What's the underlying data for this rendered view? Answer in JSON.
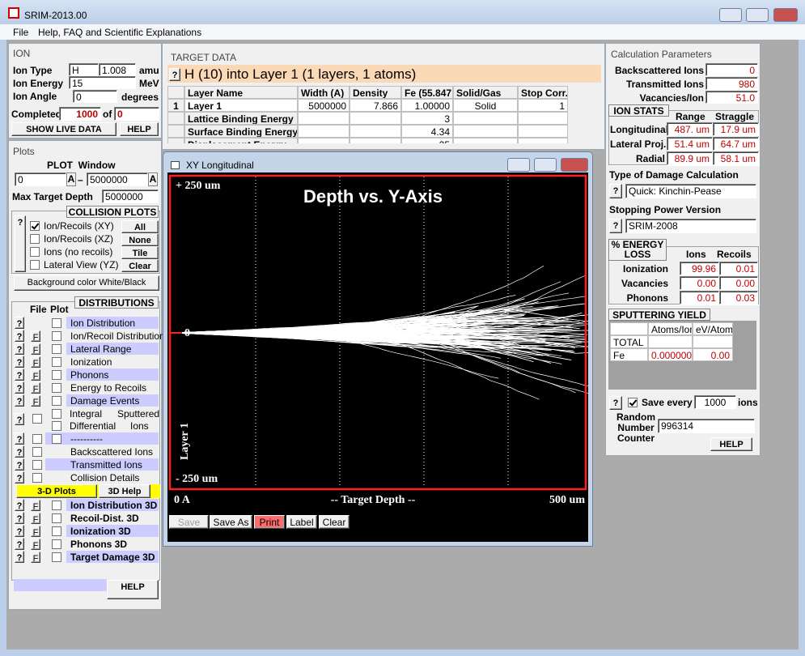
{
  "window": {
    "title": "SRIM-2013.00",
    "menu": [
      "File",
      "Help, FAQ and Scientific Explanations"
    ]
  },
  "ui": {
    "help_mark": "?",
    "file_mark": "F"
  },
  "ion": {
    "heading": "ION",
    "type_label": "Ion Type",
    "symbol": "H",
    "mass": "1.008",
    "mass_unit": "amu",
    "energy_label": "Ion Energy",
    "energy": "15",
    "energy_unit": "MeV",
    "angle_label": "Ion Angle",
    "angle": "0",
    "angle_unit": "degrees",
    "completed_label": "Completed",
    "completed": "1000",
    "of": "of",
    "total": "0",
    "live_button": "SHOW LIVE DATA",
    "help_button": "HELP"
  },
  "plots": {
    "heading": "Plots",
    "window_label": "PLOT  Window",
    "from": "0",
    "from_unit": "A",
    "dash": "–",
    "to": "5000000",
    "to_unit": "A",
    "max_depth_label": "Max Target Depth",
    "max_depth": "5000000",
    "collision": {
      "heading": "COLLISION PLOTS",
      "options": [
        {
          "label": "Ion/Recoils (XY)",
          "checked": true
        },
        {
          "label": "Ion/Recoils (XZ)",
          "checked": false
        },
        {
          "label": "Ions (no recoils)",
          "checked": false
        },
        {
          "label": "Lateral View (YZ)",
          "checked": false
        }
      ],
      "buttons": [
        "All",
        "None",
        "Tile",
        "Clear"
      ]
    },
    "background_button": "Background color White/Black",
    "distributions": {
      "heading": "DISTRIBUTIONS",
      "file_header": "File",
      "plot_header": "Plot",
      "rows": [
        {
          "label": "Ion Distribution",
          "file": false,
          "shaded": true
        },
        {
          "label": "Ion/Recoil Distribution",
          "file": true,
          "shaded": false
        },
        {
          "label": "Lateral Range",
          "file": true,
          "shaded": true
        },
        {
          "label": "Ionization",
          "file": true,
          "shaded": false
        },
        {
          "label": "Phonons",
          "file": true,
          "shaded": true
        },
        {
          "label": "Energy to Recoils",
          "file": true,
          "shaded": false
        },
        {
          "label": "Damage Events",
          "file": true,
          "shaded": true
        }
      ],
      "integral": "Integral",
      "differential": "Differential",
      "sputtered_lines": [
        "Sputtered",
        "Ions"
      ],
      "more_rows": [
        {
          "label": "----------",
          "shaded": true
        },
        {
          "label": "Backscattered Ions",
          "shaded": false
        },
        {
          "label": "Transmitted Ions",
          "shaded": true
        },
        {
          "label": "Collision Details",
          "shaded": false
        }
      ],
      "plots_3d_button": "3-D Plots",
      "help_3d_button": "3D Help",
      "rows_3d": [
        {
          "label": "Ion Distribution 3D",
          "shaded": true
        },
        {
          "label": "Recoil-Dist. 3D",
          "shaded": false
        },
        {
          "label": "Ionization 3D",
          "shaded": true
        },
        {
          "label": "Phonons 3D",
          "shaded": false
        },
        {
          "label": "Target Damage 3D",
          "shaded": true
        }
      ],
      "help_button": "HELP"
    }
  },
  "target": {
    "heading": "TARGET DATA",
    "summary": "H (10) into Layer 1 (1 layers, 1 atoms)",
    "columns": [
      "Layer Name",
      "Width (A)",
      "Density",
      "Fe (55.847",
      "Solid/Gas",
      "Stop Corr."
    ],
    "layer": {
      "index": "1",
      "name": "Layer 1",
      "width": "5000000",
      "density": "7.866",
      "fe": "1.00000",
      "phase": "Solid",
      "stop_corr": "1"
    },
    "energies": [
      {
        "label": "Lattice Binding Energy",
        "value": "3"
      },
      {
        "label": "Surface Binding Energy",
        "value": "4.34"
      },
      {
        "label": "Displacement Energy",
        "value": "25"
      }
    ]
  },
  "calc": {
    "heading": "Calculation Parameters",
    "totals": [
      {
        "label": "Backscattered Ions",
        "value": "0"
      },
      {
        "label": "Transmitted Ions",
        "value": "980"
      },
      {
        "label": "Vacancies/Ion",
        "value": "51.0"
      }
    ],
    "stats_heading": "ION STATS",
    "range_header": "Range",
    "straggle_header": "Straggle",
    "stats": [
      {
        "label": "Longitudinal",
        "range": "487. um",
        "straggle": "17.9 um"
      },
      {
        "label": "Lateral Proj.",
        "range": "51.4 um",
        "straggle": "64.7 um"
      },
      {
        "label": "Radial",
        "range": "89.9 um",
        "straggle": "58.1 um"
      }
    ],
    "damage_label": "Type of Damage Calculation",
    "damage": "Quick: Kinchin-Pease",
    "stopping_label": "Stopping Power Version",
    "stopping": "SRIM-2008",
    "energy_heading": "% ENERGY LOSS",
    "ions_header": "Ions",
    "recoils_header": "Recoils",
    "energy": [
      {
        "label": "Ionization",
        "ions": "99.96",
        "recoils": "0.01"
      },
      {
        "label": "Vacancies",
        "ions": "0.00",
        "recoils": "0.00"
      },
      {
        "label": "Phonons",
        "ions": "0.01",
        "recoils": "0.03"
      }
    ],
    "sputter_heading": "SPUTTERING YIELD",
    "sputter_columns": [
      "Atoms/Ion",
      "eV/Atom"
    ],
    "sputter_total": "TOTAL",
    "sputter_rows": [
      {
        "label": "Fe",
        "atoms": "0.000000",
        "ev": "0.00"
      }
    ],
    "save_checked": true,
    "save_label": "Save every",
    "save_every": "1000",
    "save_unit": "ions",
    "random_lines": [
      "Random",
      "Number",
      "Counter"
    ],
    "random": "996314",
    "help_button": "HELP"
  },
  "plot_window": {
    "title": "XY Longitudinal",
    "plot_title": "Depth vs. Y-Axis",
    "y_top": "+ 250 um",
    "y_zero": "0",
    "y_bottom": "- 250 um",
    "layer": "Layer 1",
    "x_start": "0 A",
    "x_label": "-- Target Depth --",
    "x_end": "500 um",
    "buttons": [
      "Save",
      "Save As",
      "Print",
      "Label",
      "Clear"
    ]
  }
}
